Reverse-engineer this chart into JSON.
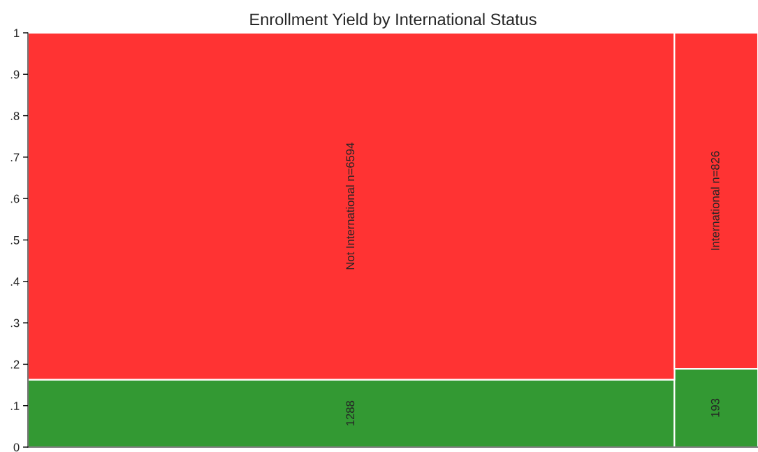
{
  "chart_data": {
    "type": "bar",
    "title": "Enrollment Yield by International Status",
    "stacked": true,
    "categories": [
      "Not International n=6594",
      "International n=826"
    ],
    "series": [
      {
        "color": "#339933",
        "values": [
          0.163,
          0.189
        ]
      },
      {
        "color": "#ff3333",
        "values": [
          0.837,
          0.811
        ]
      }
    ],
    "annotations": [
      "1288",
      "193"
    ],
    "ylim": [
      0,
      1
    ],
    "yticks": [
      0,
      {
        "value": 0.1,
        "label": ".1"
      },
      {
        "value": 0.2,
        "label": ".2"
      },
      {
        "value": 0.3,
        "label": ".3"
      },
      {
        "value": 0.4,
        "label": ".4"
      },
      {
        "value": 0.5,
        "label": ".5"
      },
      {
        "value": 0.6,
        "label": ".6"
      },
      {
        "value": 0.7,
        "label": ".7"
      },
      {
        "value": 0.8,
        "label": ".8"
      },
      {
        "value": 0.9,
        "label": ".9"
      },
      1
    ],
    "tick_labels": "y"
  }
}
